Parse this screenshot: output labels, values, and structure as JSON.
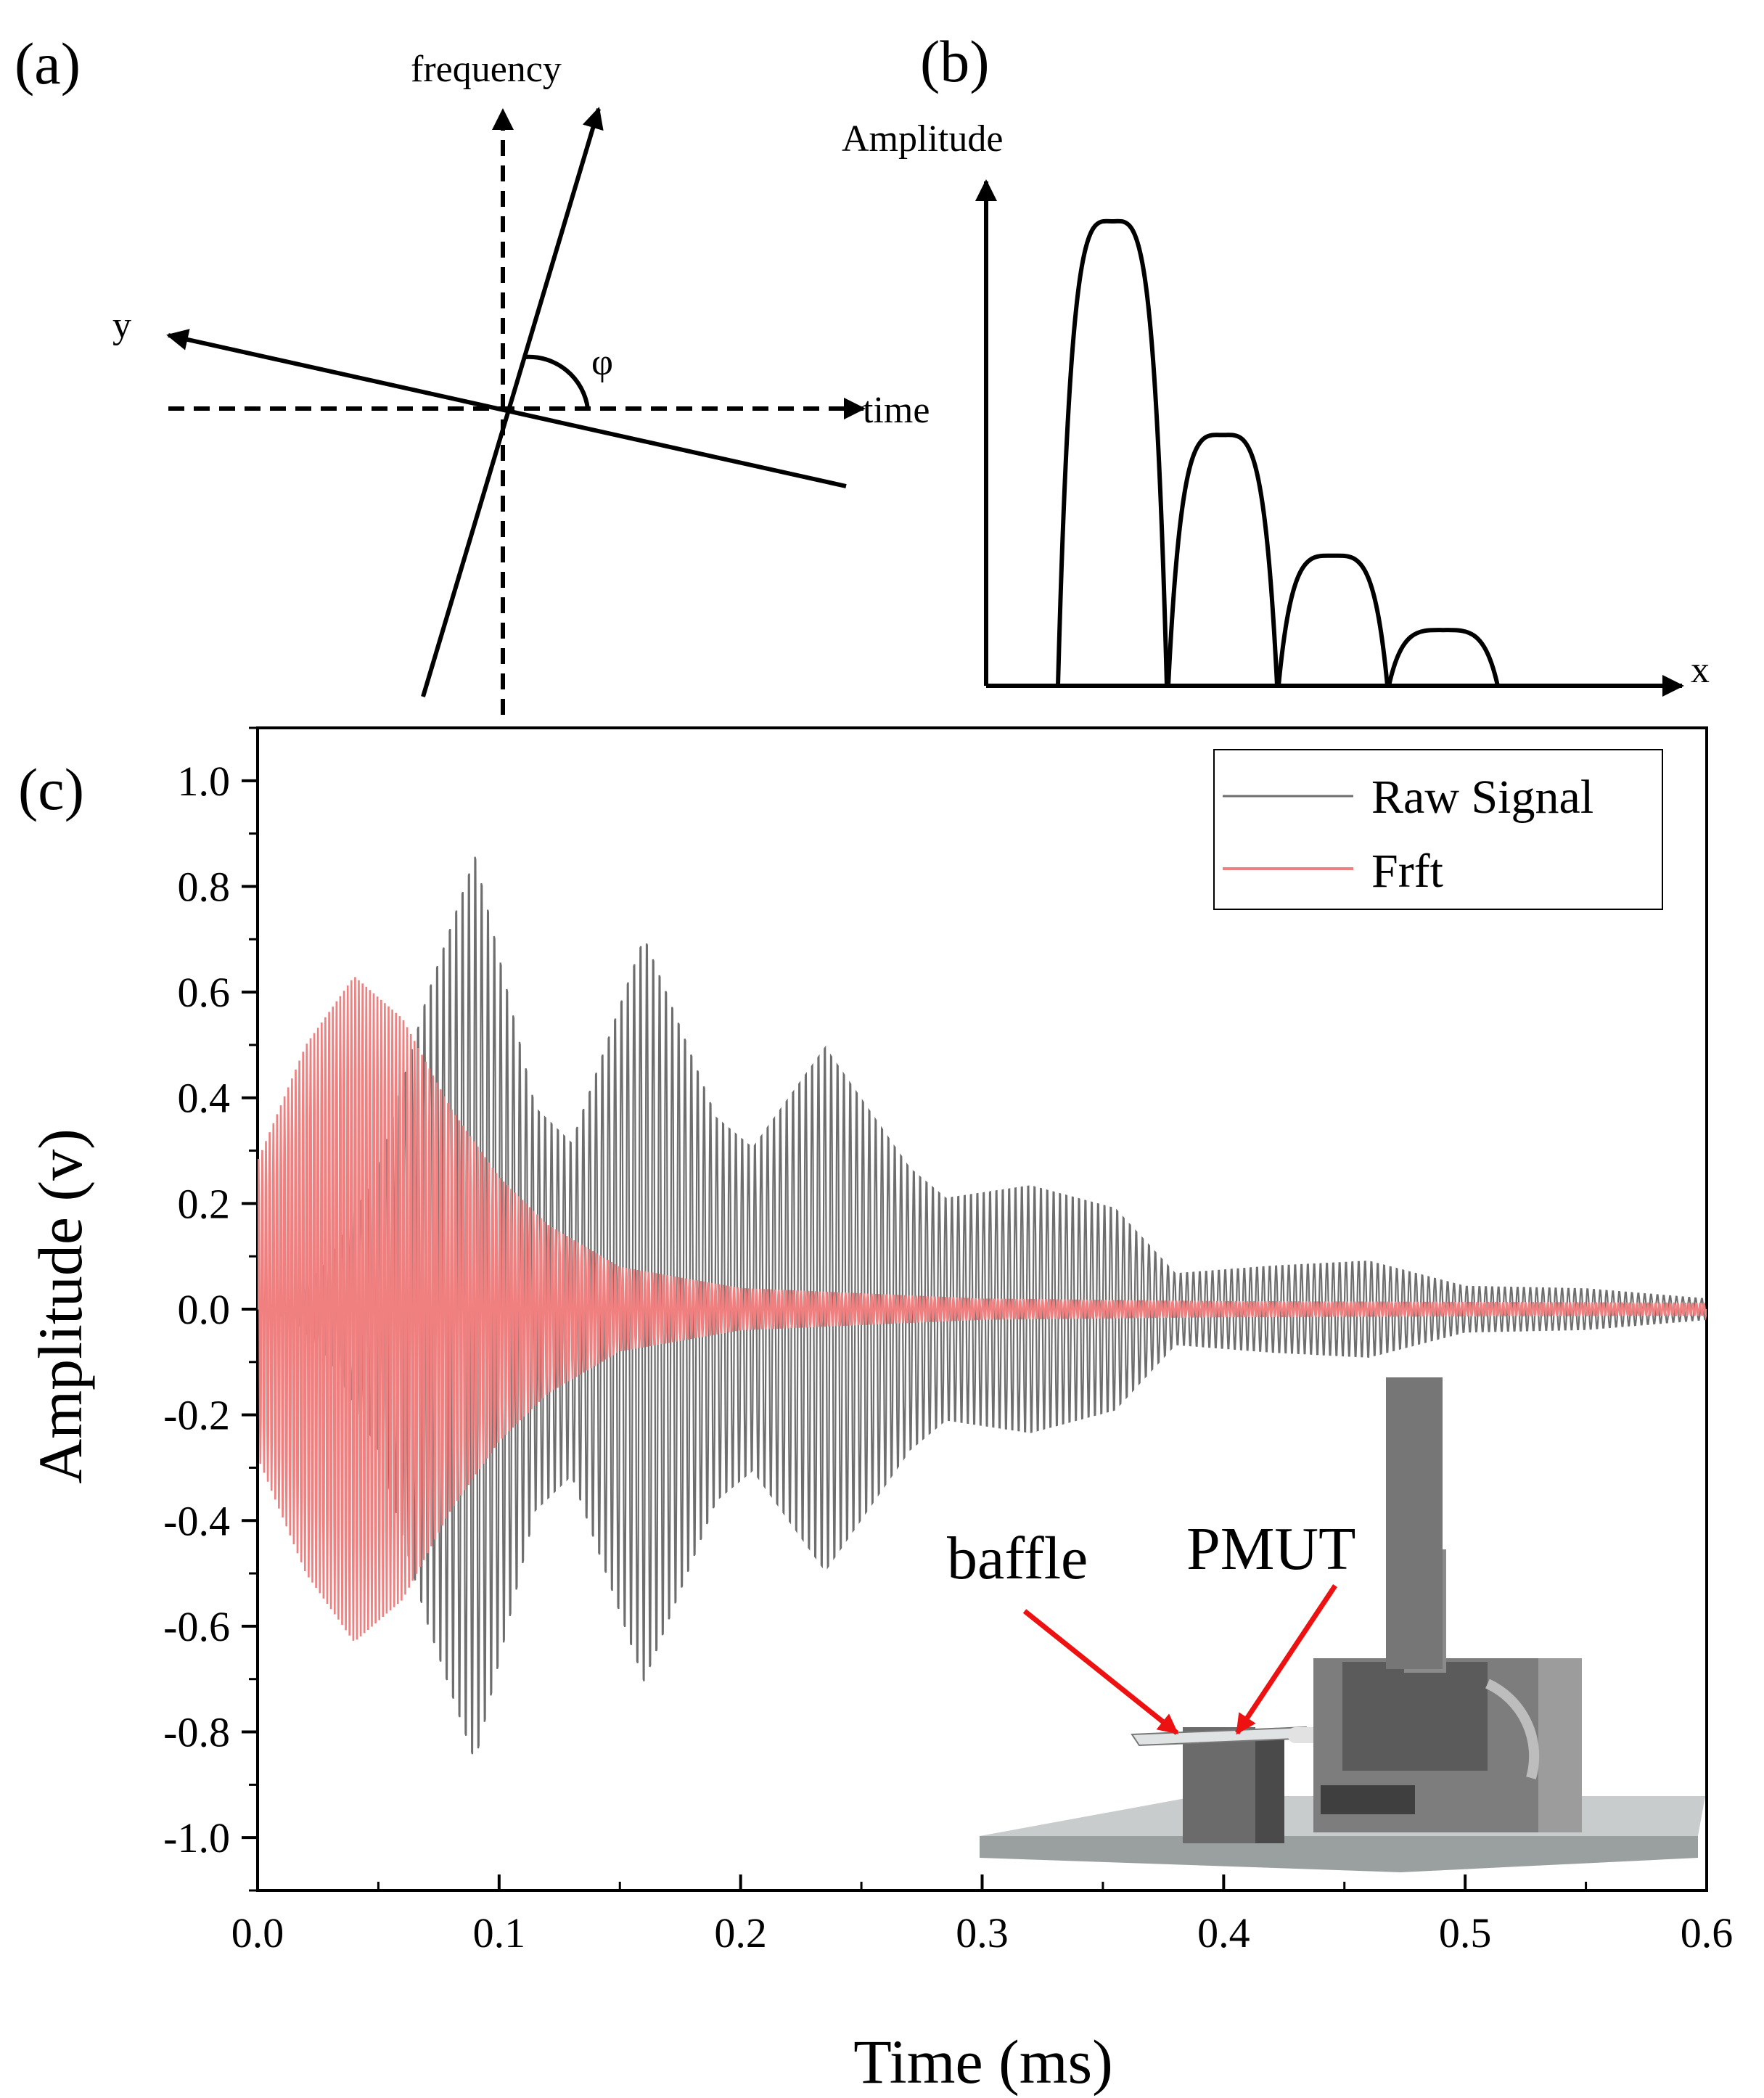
{
  "panel_a": {
    "label": "(a)",
    "axes": {
      "frequency": "frequency",
      "time": "time",
      "y": "y",
      "angle": "φ"
    }
  },
  "panel_b": {
    "label": "(b)",
    "ylabel": "Amplitude",
    "xlabel": "x",
    "chart_note": "Schematic decaying lobes (no numeric axes)"
  },
  "panel_c": {
    "label": "(c)",
    "inset_labels": {
      "baffle": "baffle",
      "pmut": "PMUT"
    }
  },
  "chart_data": [
    {
      "type": "area",
      "title": "(b)",
      "xlabel": "x",
      "ylabel": "Amplitude",
      "series": [
        {
          "name": "lobes",
          "values": [
            1.0,
            0.54,
            0.28,
            0.12
          ]
        }
      ]
    },
    {
      "type": "line",
      "title": "(c)",
      "xlabel": "Time (ms)",
      "ylabel": "Amplitude (v)",
      "xlim": [
        0.0,
        0.6
      ],
      "ylim": [
        -1.1,
        1.1
      ],
      "xticks": [
        "0.0",
        "0.1",
        "0.2",
        "0.3",
        "0.4",
        "0.5",
        "0.6"
      ],
      "yticks": [
        "1.0",
        "0.8",
        "0.6",
        "0.4",
        "0.2",
        "0.0",
        "-0.2",
        "-0.4",
        "-0.6",
        "-0.8",
        "-1.0"
      ],
      "legend": {
        "position": "top-right",
        "entries": [
          "Raw Signal",
          "Frft"
        ]
      },
      "series": [
        {
          "name": "Raw Signal",
          "color": "#6e6e6e",
          "oscillation_freq_khz": 380,
          "envelope": {
            "t": [
              0.0,
              0.015,
              0.03,
              0.05,
              0.07,
              0.09,
              0.115,
              0.13,
              0.16,
              0.19,
              0.205,
              0.235,
              0.27,
              0.285,
              0.32,
              0.355,
              0.38,
              0.42,
              0.46,
              0.5,
              0.55,
              0.6
            ],
            "amp": [
              0.0,
              0.02,
              0.1,
              0.28,
              0.62,
              0.9,
              0.4,
              0.33,
              0.74,
              0.38,
              0.32,
              0.52,
              0.28,
              0.22,
              0.245,
              0.2,
              0.07,
              0.085,
              0.095,
              0.045,
              0.04,
              0.02
            ]
          }
        },
        {
          "name": "Frft",
          "color": "#f08080",
          "oscillation_freq_khz": 650,
          "envelope": {
            "t": [
              0.0,
              0.02,
              0.04,
              0.06,
              0.08,
              0.1,
              0.12,
              0.15,
              0.2,
              0.3,
              0.4,
              0.6
            ],
            "amp": [
              0.28,
              0.5,
              0.63,
              0.55,
              0.38,
              0.25,
              0.16,
              0.08,
              0.04,
              0.02,
              0.015,
              0.012
            ]
          }
        }
      ]
    }
  ],
  "colors": {
    "raw": "#6e6e6e",
    "frft": "#f08080",
    "arrow_red": "#ee1111"
  }
}
